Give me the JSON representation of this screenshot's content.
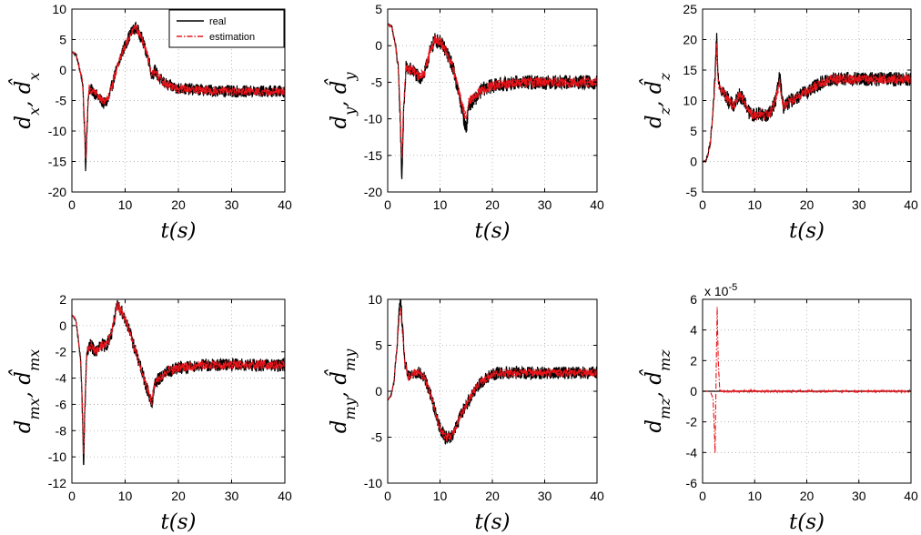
{
  "chart_data": [
    {
      "type": "line",
      "id": "dx",
      "ylabel": "d_x, d̂_x",
      "xlabel": "t(s)",
      "xlim": [
        0,
        40
      ],
      "ylim": [
        -20,
        10
      ],
      "xticks": [
        0,
        10,
        20,
        30,
        40
      ],
      "yticks": [
        -20,
        -15,
        -10,
        -5,
        0,
        5,
        10
      ],
      "grid": true,
      "legend": {
        "position": "top-right",
        "entries": [
          "real",
          "estimation"
        ]
      },
      "series": [
        {
          "name": "real",
          "color": "#000000",
          "noise": 1.0,
          "x": [
            0,
            0.8,
            1.5,
            2.0,
            2.4,
            2.6,
            2.8,
            3.2,
            4.0,
            5.0,
            6.0,
            6.8,
            8.0,
            9.5,
            11.0,
            12.0,
            13.0,
            14.5,
            15.0,
            15.6,
            16.5,
            18.0,
            20.0,
            25.0,
            30.0,
            35.0,
            40.0
          ],
          "y": [
            3,
            2.5,
            0,
            -2,
            -10,
            -16.5,
            -10,
            -3,
            -3.5,
            -4.5,
            -5.5,
            -5,
            -1,
            3,
            6,
            7,
            5.5,
            1.5,
            -1,
            0,
            -1.5,
            -2.5,
            -3,
            -3.3,
            -3.5,
            -3.5,
            -3.5
          ]
        },
        {
          "name": "estimation",
          "color": "#e8141a",
          "noise": 0.7,
          "x": [
            0,
            0.8,
            1.5,
            2.0,
            2.4,
            2.6,
            2.8,
            3.2,
            4.0,
            5.0,
            6.0,
            6.8,
            8.0,
            9.5,
            11.0,
            12.0,
            13.0,
            14.5,
            15.0,
            15.6,
            16.5,
            18.0,
            20.0,
            25.0,
            30.0,
            35.0,
            40.0
          ],
          "y": [
            3,
            2.5,
            0,
            -2,
            -9,
            -14.5,
            -9,
            -3,
            -3.5,
            -4.3,
            -5.2,
            -4.8,
            -1,
            3,
            6,
            7,
            5.5,
            1.5,
            -1,
            0,
            -1.5,
            -2.5,
            -3,
            -3.3,
            -3.5,
            -3.5,
            -3.5
          ]
        }
      ]
    },
    {
      "type": "line",
      "id": "dy",
      "ylabel": "d_y, d̂_y",
      "xlabel": "t(s)",
      "xlim": [
        0,
        40
      ],
      "ylim": [
        -20,
        5
      ],
      "xticks": [
        0,
        10,
        20,
        30,
        40
      ],
      "yticks": [
        -20,
        -15,
        -10,
        -5,
        0,
        5
      ],
      "grid": true,
      "series": [
        {
          "name": "real",
          "color": "#000000",
          "noise": 1.0,
          "x": [
            0,
            0.8,
            1.5,
            2.0,
            2.4,
            2.7,
            3.0,
            3.5,
            5.0,
            6.0,
            7.0,
            8.0,
            9.0,
            10.0,
            11.0,
            12.5,
            14.0,
            15.0,
            15.5,
            16.5,
            18.0,
            20.0,
            25.0,
            30.0,
            35.0,
            40.0
          ],
          "y": [
            3,
            2.5,
            0,
            -3,
            -10,
            -18.5,
            -10,
            -3,
            -3.5,
            -4.5,
            -4,
            -1,
            0.8,
            0.5,
            -0.5,
            -3,
            -8,
            -11.5,
            -8,
            -7.5,
            -6,
            -5.5,
            -5,
            -5,
            -5,
            -5
          ]
        },
        {
          "name": "estimation",
          "color": "#e8141a",
          "noise": 0.7,
          "x": [
            0,
            0.8,
            1.5,
            2.0,
            2.4,
            2.7,
            3.0,
            3.5,
            5.0,
            6.0,
            7.0,
            8.0,
            9.0,
            10.0,
            11.0,
            12.5,
            14.0,
            15.0,
            15.5,
            16.5,
            18.0,
            20.0,
            25.0,
            30.0,
            35.0,
            40.0
          ],
          "y": [
            3,
            2.5,
            0,
            -3,
            -9,
            -16,
            -9,
            -3,
            -3.5,
            -4.3,
            -3.8,
            -1,
            0.8,
            0.5,
            -0.5,
            -3,
            -7.5,
            -10,
            -7.5,
            -7,
            -6,
            -5.5,
            -5,
            -5,
            -5,
            -5
          ]
        }
      ]
    },
    {
      "type": "line",
      "id": "dz",
      "ylabel": "d_z, d̂_z",
      "xlabel": "t(s)",
      "xlim": [
        0,
        40
      ],
      "ylim": [
        -5,
        25
      ],
      "xticks": [
        0,
        10,
        20,
        30,
        40
      ],
      "yticks": [
        -5,
        0,
        5,
        10,
        15,
        20,
        25
      ],
      "grid": true,
      "series": [
        {
          "name": "real",
          "color": "#000000",
          "noise": 1.2,
          "x": [
            0,
            0.5,
            1.0,
            1.5,
            2.0,
            2.4,
            2.7,
            3.0,
            3.5,
            5.0,
            6.0,
            7.0,
            8.0,
            9.0,
            10.0,
            11.0,
            12.0,
            13.0,
            14.0,
            14.8,
            15.5,
            17.0,
            19.0,
            21.0,
            23.0,
            25.0,
            30.0,
            35.0,
            40.0
          ],
          "y": [
            0,
            0,
            1,
            3,
            8,
            14,
            21,
            14,
            12,
            10,
            9,
            11,
            10,
            8,
            7.5,
            8,
            7.5,
            8,
            10,
            14,
            9,
            10,
            11,
            12,
            13,
            13.5,
            13.5,
            13.5,
            13.5
          ]
        },
        {
          "name": "estimation",
          "color": "#e8141a",
          "noise": 0.8,
          "x": [
            0,
            0.5,
            1.0,
            1.5,
            2.0,
            2.4,
            2.7,
            3.0,
            3.5,
            5.0,
            6.0,
            7.0,
            8.0,
            9.0,
            10.0,
            11.0,
            12.0,
            13.0,
            14.0,
            14.8,
            15.5,
            17.0,
            19.0,
            21.0,
            23.0,
            25.0,
            30.0,
            35.0,
            40.0
          ],
          "y": [
            0,
            0,
            1,
            3,
            8,
            13,
            19,
            13,
            12,
            10,
            9,
            11,
            10,
            8,
            7.5,
            8,
            7.5,
            8,
            10,
            13,
            9,
            10,
            11,
            12,
            13,
            13.5,
            13.5,
            13.5,
            13.5
          ]
        }
      ]
    },
    {
      "type": "line",
      "id": "dmx",
      "ylabel": "d_mx, d̂_mx",
      "xlabel": "t(s)",
      "xlim": [
        0,
        40
      ],
      "ylim": [
        -12,
        2
      ],
      "xticks": [
        0,
        10,
        20,
        30,
        40
      ],
      "yticks": [
        -12,
        -10,
        -8,
        -6,
        -4,
        -2,
        0,
        2
      ],
      "grid": true,
      "series": [
        {
          "name": "real",
          "color": "#000000",
          "noise": 0.5,
          "x": [
            0,
            0.7,
            1.2,
            1.7,
            2.0,
            2.2,
            2.4,
            2.8,
            3.5,
            4.5,
            5.5,
            6.5,
            7.5,
            8.5,
            9.5,
            10.5,
            12.0,
            13.5,
            15.0,
            15.5,
            16.5,
            18.0,
            20.0,
            25.0,
            30.0,
            35.0,
            40.0
          ],
          "y": [
            0.8,
            0.5,
            -1,
            -3,
            -7,
            -11,
            -7,
            -2,
            -1.5,
            -2,
            -1.5,
            -1.5,
            -0.5,
            1.5,
            1,
            0,
            -2,
            -4,
            -6,
            -4.5,
            -4,
            -3.5,
            -3.2,
            -3,
            -3,
            -3,
            -3
          ]
        },
        {
          "name": "estimation",
          "color": "#e8141a",
          "noise": 0.35,
          "x": [
            0,
            0.7,
            1.2,
            1.7,
            2.0,
            2.2,
            2.4,
            2.8,
            3.5,
            4.5,
            5.5,
            6.5,
            7.5,
            8.5,
            9.5,
            10.5,
            12.0,
            13.5,
            15.0,
            15.5,
            16.5,
            18.0,
            20.0,
            25.0,
            30.0,
            35.0,
            40.0
          ],
          "y": [
            0.8,
            0.5,
            -1,
            -3,
            -6.5,
            -10,
            -6.5,
            -2,
            -1.5,
            -2,
            -1.5,
            -1.5,
            -0.5,
            1.5,
            1,
            0,
            -2,
            -4,
            -5.8,
            -4.5,
            -4,
            -3.5,
            -3.2,
            -3,
            -3,
            -3,
            -3
          ]
        }
      ]
    },
    {
      "type": "line",
      "id": "dmy",
      "ylabel": "d_my, d̂_my",
      "xlabel": "t(s)",
      "xlim": [
        0,
        40
      ],
      "ylim": [
        -10,
        10
      ],
      "xticks": [
        0,
        10,
        20,
        30,
        40
      ],
      "yticks": [
        -10,
        -5,
        0,
        5,
        10
      ],
      "grid": true,
      "series": [
        {
          "name": "real",
          "color": "#000000",
          "noise": 0.7,
          "x": [
            0,
            0.6,
            1.2,
            1.8,
            2.2,
            2.5,
            2.8,
            3.3,
            4.0,
            5.0,
            6.0,
            7.0,
            8.0,
            9.0,
            10.0,
            11.0,
            12.0,
            13.0,
            14.0,
            15.5,
            17.0,
            19.0,
            21.0,
            25.0,
            30.0,
            35.0,
            40.0
          ],
          "y": [
            -1,
            -0.5,
            1,
            5,
            9,
            10,
            7,
            3,
            1.5,
            2,
            2,
            1.5,
            0,
            -2,
            -4,
            -5,
            -5,
            -4,
            -2.5,
            -1,
            0.5,
            1.5,
            2,
            2,
            2,
            2,
            2
          ]
        },
        {
          "name": "estimation",
          "color": "#e8141a",
          "noise": 0.45,
          "x": [
            0,
            0.6,
            1.2,
            1.8,
            2.2,
            2.5,
            2.8,
            3.3,
            4.0,
            5.0,
            6.0,
            7.0,
            8.0,
            9.0,
            10.0,
            11.0,
            12.0,
            13.0,
            14.0,
            15.5,
            17.0,
            19.0,
            21.0,
            25.0,
            30.0,
            35.0,
            40.0
          ],
          "y": [
            -1,
            -0.5,
            1,
            5,
            8,
            9,
            6.5,
            3,
            1.5,
            2,
            2,
            1.5,
            0,
            -2,
            -4,
            -5,
            -5,
            -4,
            -2.5,
            -1,
            0.5,
            1.5,
            2,
            2,
            2,
            2,
            2
          ]
        }
      ]
    },
    {
      "type": "line",
      "id": "dmz",
      "ylabel": "d_mz, d̂_mz",
      "xlabel": "t(s)",
      "xlim": [
        0,
        40
      ],
      "ylim": [
        -6,
        6
      ],
      "scale_label": "x 10",
      "scale_exp": "-5",
      "xticks": [
        0,
        10,
        20,
        30,
        40
      ],
      "yticks": [
        -6,
        -4,
        -2,
        0,
        2,
        4,
        6
      ],
      "grid": true,
      "series": [
        {
          "name": "real",
          "color": "#000000",
          "noise": 0,
          "x": [
            0,
            40
          ],
          "y": [
            0,
            0
          ]
        },
        {
          "name": "estimation",
          "color": "#e8141a",
          "noise": 0.06,
          "x": [
            0,
            1.5,
            2.0,
            2.2,
            2.4,
            2.6,
            2.8,
            3.0,
            3.3,
            4.0,
            40.0
          ],
          "y": [
            0,
            0,
            -0.5,
            -2,
            -4,
            1,
            5.5,
            2,
            0,
            0,
            0
          ]
        }
      ]
    }
  ],
  "legend": {
    "real_label": "real",
    "estimation_label": "estimation"
  }
}
